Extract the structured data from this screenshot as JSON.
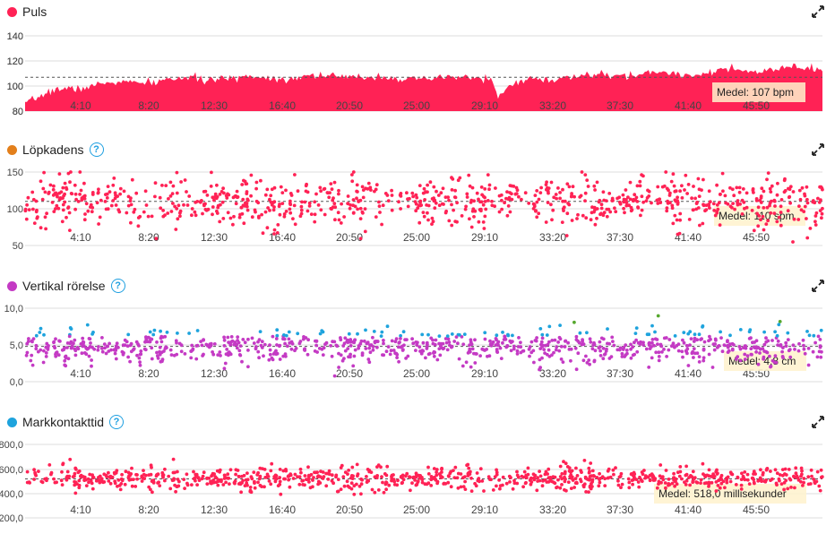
{
  "colors": {
    "red": "#ff2255",
    "orange": "#e37f1b",
    "magenta": "#c43ac4",
    "blue": "#1ea3dd",
    "green": "#56a82e",
    "grid": "#dddddd",
    "mean": "#555555"
  },
  "x_tick_labels": [
    "4:10",
    "8:20",
    "12:30",
    "16:40",
    "20:50",
    "25:00",
    "29:10",
    "33:20",
    "37:30",
    "41:40",
    "45:50"
  ],
  "panels": [
    {
      "title": "Puls",
      "dot_color": "#ff2255",
      "has_help": false,
      "mean_label": "Medel: 107 bpm",
      "expand_icon": "expand-icon"
    },
    {
      "title": "Löpkadens",
      "dot_color": "#e37f1b",
      "has_help": true,
      "help_glyph": "?",
      "mean_label": "Medel: 110 spm",
      "expand_icon": "expand-icon"
    },
    {
      "title": "Vertikal rörelse",
      "dot_color": "#c43ac4",
      "has_help": true,
      "help_glyph": "?",
      "mean_label": "Medel: 4,8 cm",
      "expand_icon": "expand-icon"
    },
    {
      "title": "Markkontakttid",
      "dot_color": "#1ea3dd",
      "has_help": true,
      "help_glyph": "?",
      "mean_label": "Medel: 518,0 millisekunder",
      "expand_icon": "expand-icon"
    }
  ],
  "chart_data": [
    {
      "type": "area",
      "title": "Puls",
      "y_tick_labels": [
        "140",
        "120",
        "100",
        "80"
      ],
      "ylim": [
        80,
        140
      ],
      "mean": 107,
      "x_minutes": [
        0,
        2,
        4,
        6,
        8,
        10,
        12,
        14,
        16,
        18,
        20,
        22,
        24,
        26,
        28,
        28.5,
        30,
        32,
        34,
        36,
        38,
        40,
        42,
        44,
        46,
        48
      ],
      "values": [
        85,
        98,
        100,
        103,
        104,
        106,
        106,
        107,
        107,
        108,
        108,
        106,
        106,
        106,
        108,
        92,
        105,
        106,
        108,
        109,
        110,
        110,
        112,
        112,
        114,
        113
      ],
      "grid": true
    },
    {
      "type": "scatter",
      "title": "Löpkadens",
      "y_tick_labels": [
        "150",
        "100",
        "50"
      ],
      "ylim": [
        50,
        150
      ],
      "mean": 110,
      "series_center": 110,
      "series_spread": 20,
      "point_count": 900,
      "grid": true
    },
    {
      "type": "scatter",
      "title": "Vertikal rörelse",
      "y_tick_labels": [
        "10,0",
        "5,0",
        "0,0"
      ],
      "ylim": [
        0,
        10
      ],
      "mean": 4.8,
      "series_center": 4.8,
      "series_spread": 1.3,
      "point_count": 900,
      "grid": true
    },
    {
      "type": "scatter",
      "title": "Markkontakttid",
      "y_tick_labels": [
        "800,0",
        "600,0",
        "400,0",
        "200,0"
      ],
      "ylim": [
        200,
        800
      ],
      "mean": 518,
      "series_center": 520,
      "series_spread": 55,
      "point_count": 900,
      "grid": true
    }
  ]
}
